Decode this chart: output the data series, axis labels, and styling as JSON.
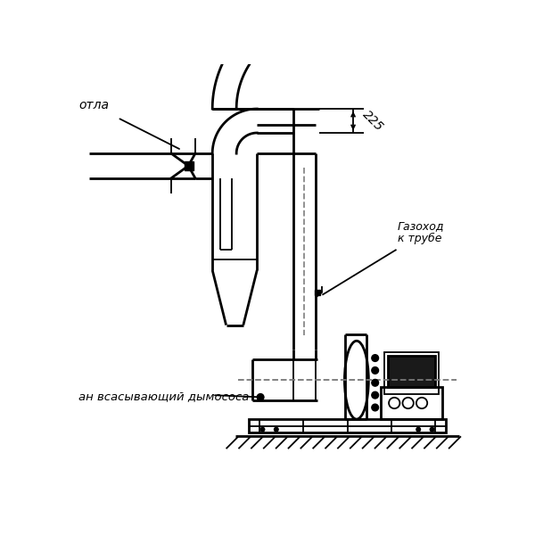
{
  "bg_color": "#ffffff",
  "line_color": "#000000",
  "label_kotla": "отла",
  "label_gaz1": "Газоход",
  "label_gaz2": "к трубе",
  "label_dimosos": "ан всасывающий дымососа",
  "dim_225": "225"
}
